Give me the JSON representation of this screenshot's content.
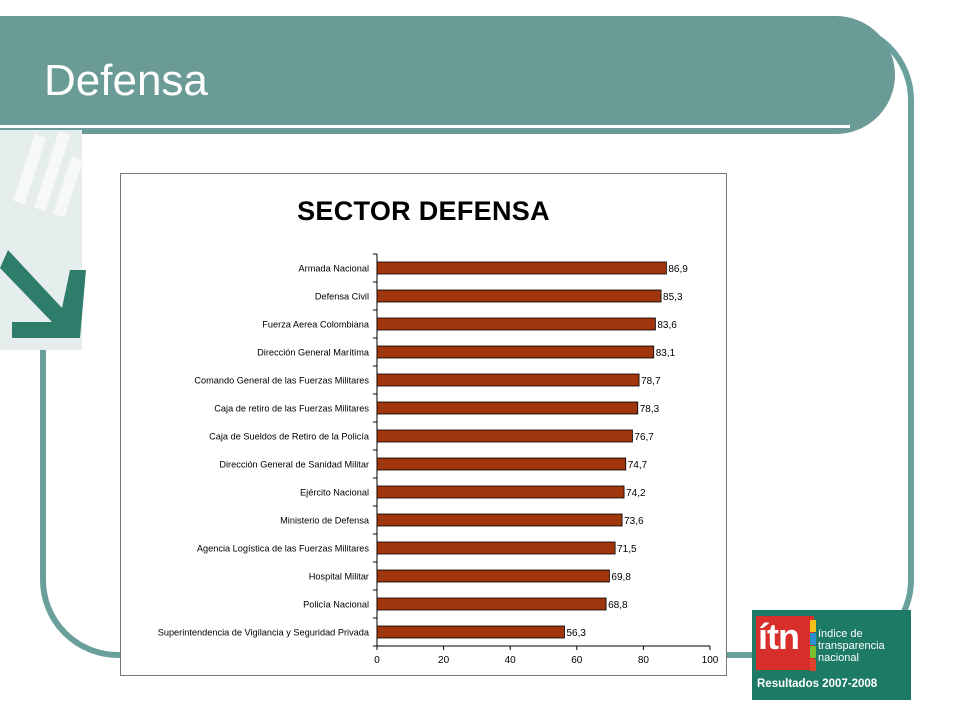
{
  "slide": {
    "title": "Defensa"
  },
  "chart_data": {
    "type": "bar",
    "orientation": "horizontal",
    "title": "SECTOR DEFENSA",
    "xlabel": "",
    "ylabel": "",
    "xlim": [
      0,
      100
    ],
    "xticks": [
      0,
      20,
      40,
      60,
      80,
      100
    ],
    "bar_color": "#a0360e",
    "grid": false,
    "legend": "none",
    "categories": [
      "Armada Nacional",
      "Defensa Civil",
      "Fuerza Aerea Colombiana",
      "Dirección General Marítima",
      "Comando General de las Fuerzas Militares",
      "Caja de retiro de las Fuerzas Militares",
      "Caja de Sueldos de Retiro de la Policía",
      "Dirección General de Sanidad Militar",
      "Ejército Nacional",
      "Ministerio de Defensa",
      "Agencia Logística de las Fuerzas Militares",
      "Hospital Militar",
      "Policía Nacional",
      "Superintendencia de Vigilancia y Seguridad Privada"
    ],
    "values": [
      86.9,
      85.3,
      83.6,
      83.1,
      78.7,
      78.3,
      76.7,
      74.7,
      74.2,
      73.6,
      71.5,
      69.8,
      68.8,
      56.3
    ],
    "value_labels": [
      "86,9",
      "85,3",
      "83,6",
      "83,1",
      "78,7",
      "78,3",
      "76,7",
      "74,7",
      "74,2",
      "73,6",
      "71,5",
      "69,8",
      "68,8",
      "56,3"
    ]
  },
  "logo": {
    "mark": "ítn",
    "text_lines": [
      "índice de",
      "transparencia",
      "nacional"
    ],
    "results": "Resultados 2007-2008",
    "colors": {
      "background": "#1d7a64",
      "mark": "#d92f2a"
    }
  },
  "theme": {
    "band": "#6a9b97",
    "frame": "#6aa09c",
    "watermark": "#e6eeed",
    "arrow": "#2e7d6b"
  }
}
